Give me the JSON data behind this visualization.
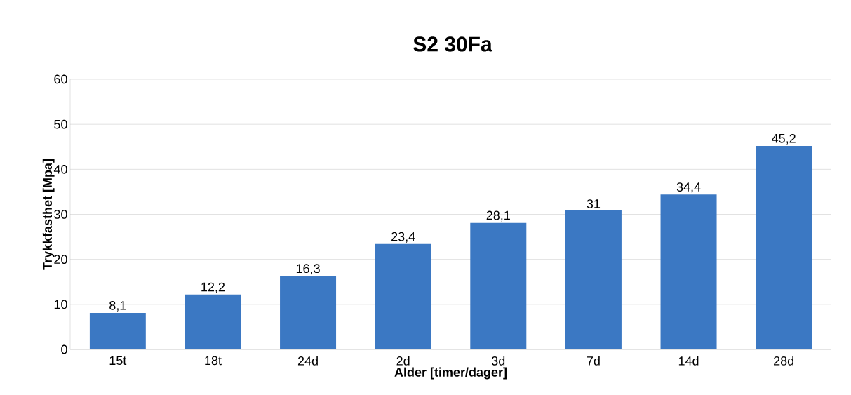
{
  "chart_data": {
    "type": "bar",
    "title": "S2 30Fa",
    "xlabel": "Alder [timer/dager]",
    "ylabel": "Trykkfasthet [Mpa]",
    "categories": [
      "15t",
      "18t",
      "24d",
      "2d",
      "3d",
      "7d",
      "14d",
      "28d"
    ],
    "values": [
      8.1,
      12.2,
      16.3,
      23.4,
      28.1,
      31,
      34.4,
      45.2
    ],
    "value_labels": [
      "8,1",
      "12,2",
      "16,3",
      "23,4",
      "28,1",
      "31",
      "34,4",
      "45,2"
    ],
    "color": "#3b78c3",
    "ylim": [
      0,
      60
    ],
    "yticks": [
      0,
      10,
      20,
      30,
      40,
      50,
      60
    ],
    "grid": "y"
  }
}
